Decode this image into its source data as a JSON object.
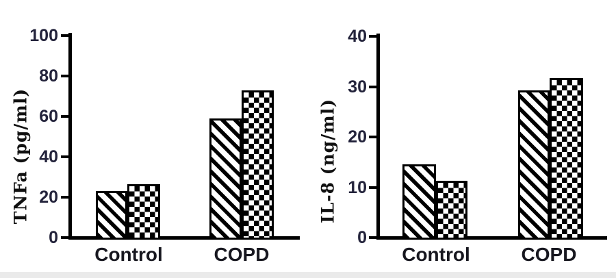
{
  "figure": {
    "background": "#ffffff",
    "axis_color": "#000000",
    "tick_label_color": "#23233b",
    "category_label_color": "#17171f",
    "bottom_strip_color": "#eaeaea"
  },
  "chart_data": [
    {
      "type": "bar",
      "title": "",
      "ylabel": "TNFa (pg/ml)",
      "xlabel": "",
      "categories": [
        "Control",
        "COPD"
      ],
      "series": [
        {
          "name": "diagonal-hatch",
          "pattern": "diagonal-stripes",
          "values": [
            23,
            59
          ]
        },
        {
          "name": "checkerboard-hatch",
          "pattern": "checkerboard",
          "values": [
            26.5,
            73
          ]
        }
      ],
      "ylim": [
        0,
        100
      ],
      "yticks": [
        0,
        20,
        40,
        60,
        80,
        100
      ],
      "grid": false,
      "legend": "none"
    },
    {
      "type": "bar",
      "title": "",
      "ylabel": "IL-8 (ng/ml)",
      "xlabel": "",
      "categories": [
        "Control",
        "COPD"
      ],
      "series": [
        {
          "name": "diagonal-hatch",
          "pattern": "diagonal-stripes",
          "values": [
            14.5,
            29.3
          ]
        },
        {
          "name": "checkerboard-hatch",
          "pattern": "checkerboard",
          "values": [
            11.3,
            31.7
          ]
        }
      ],
      "ylim": [
        0,
        40
      ],
      "yticks": [
        0,
        10,
        20,
        30,
        40
      ],
      "grid": false,
      "legend": "none"
    }
  ]
}
